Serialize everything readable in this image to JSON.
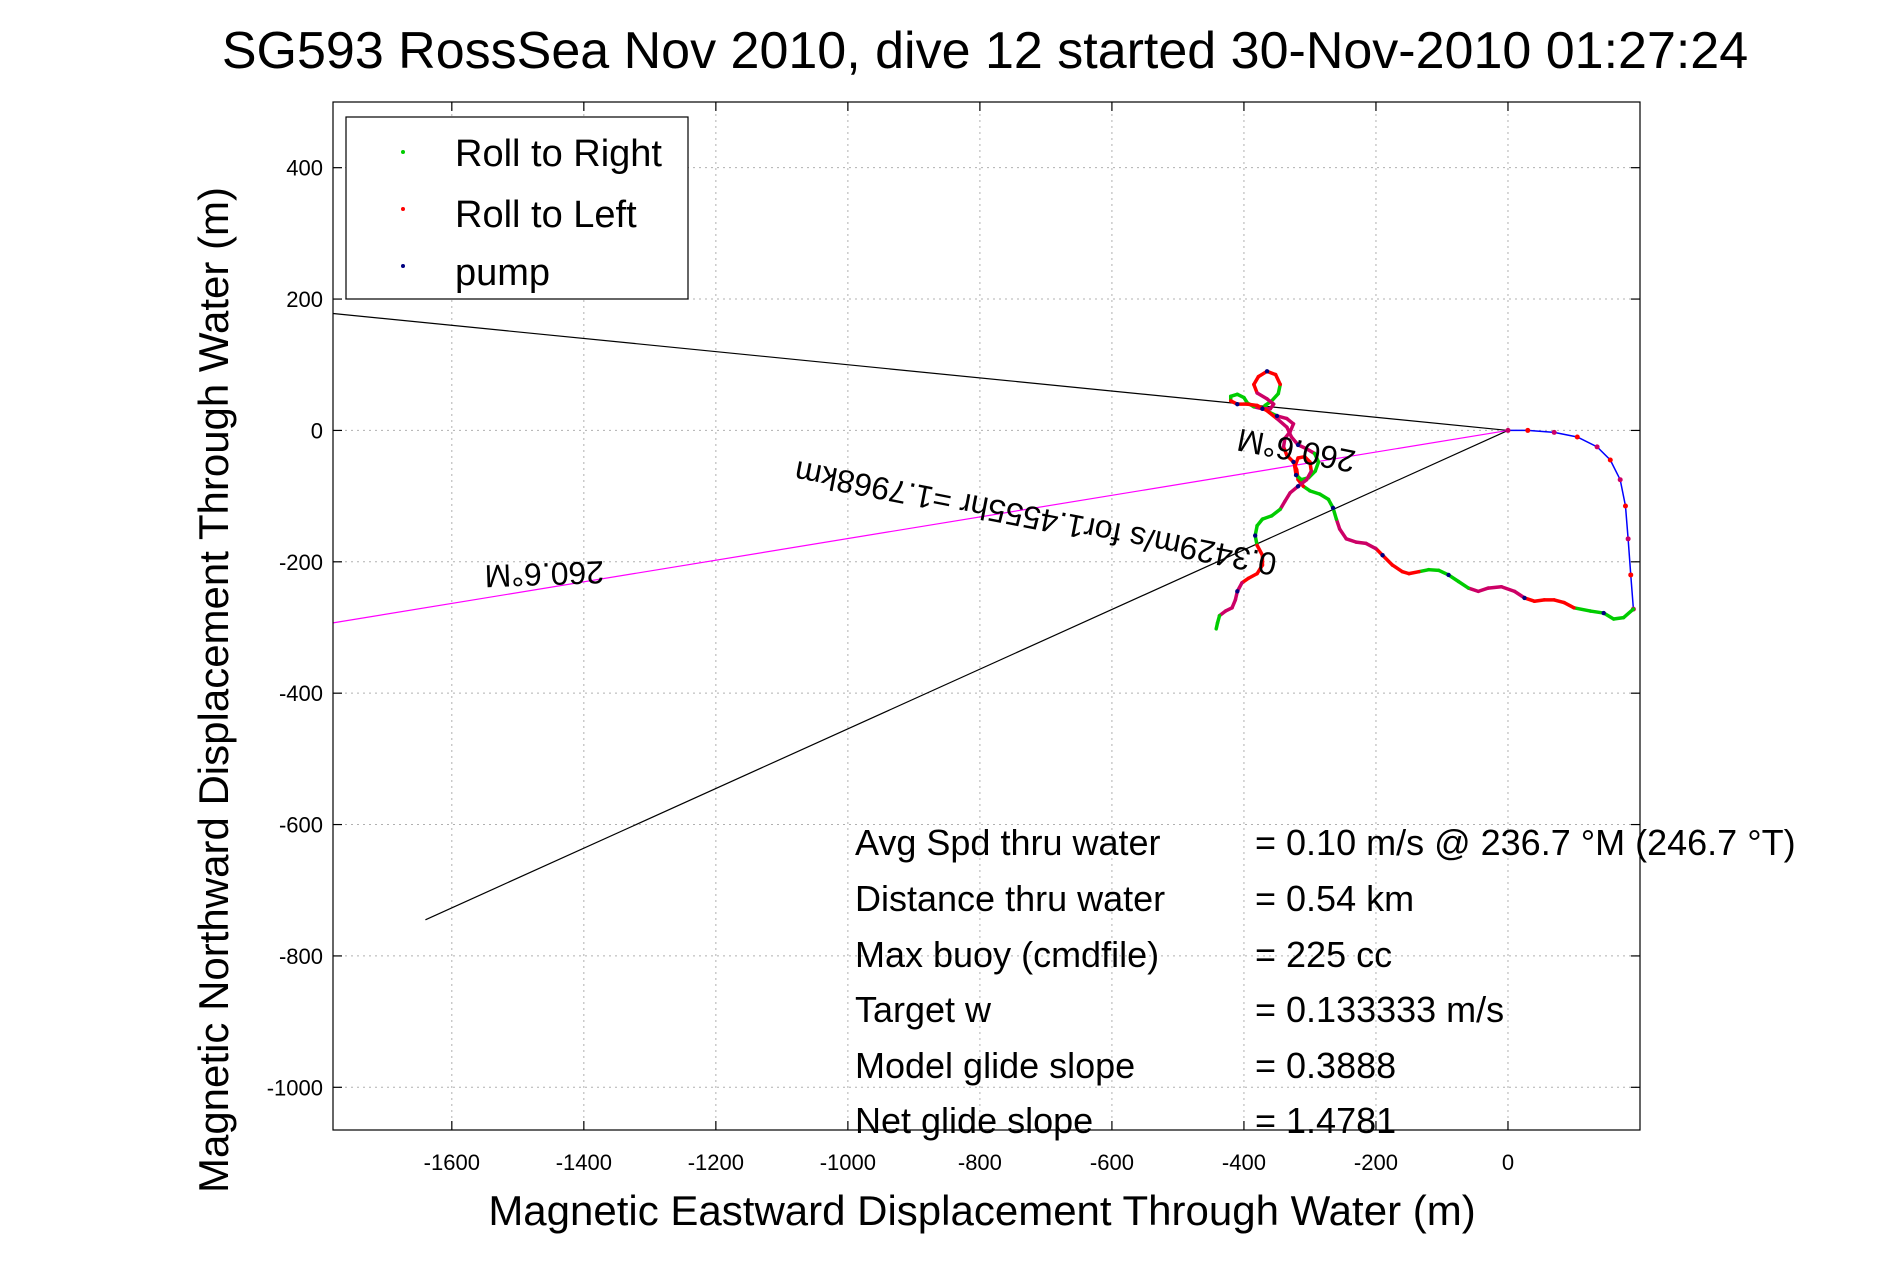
{
  "chart_data": {
    "type": "line",
    "title": "SG593 RossSea Nov 2010, dive 12 started 30-Nov-2010 01:27:24",
    "xlabel": "Magnetic Eastward Displacement Through Water (m)",
    "ylabel": "Magnetic Northward Displacement Through Water (m)",
    "xlim": [
      -1780,
      200
    ],
    "ylim": [
      -1065,
      500
    ],
    "xticks": [
      -1600,
      -1400,
      -1200,
      -1000,
      -800,
      -600,
      -400,
      -200,
      0
    ],
    "yticks": [
      400,
      200,
      0,
      -200,
      -400,
      -600,
      -800,
      -1000
    ],
    "grid": true,
    "legend": {
      "placement": "top-left",
      "entries": [
        {
          "label": "Roll to Right",
          "color": "#00cc00"
        },
        {
          "label": "Roll to Left",
          "color": "#ff0000"
        },
        {
          "label": "pump",
          "color": "#000080"
        }
      ]
    },
    "reference_lines": [
      {
        "color": "#000000",
        "points": [
          [
            -1780,
            178
          ],
          [
            0,
            0
          ]
        ]
      },
      {
        "color": "#000000",
        "points": [
          [
            -1640,
            -745
          ],
          [
            0,
            0
          ]
        ]
      },
      {
        "color": "#ff00ff",
        "points": [
          [
            -1780,
            -293
          ],
          [
            0,
            0
          ]
        ]
      }
    ],
    "dive_track": {
      "color": "#0000ff",
      "points": [
        [
          0,
          0
        ],
        [
          30,
          0
        ],
        [
          70,
          -3
        ],
        [
          105,
          -10
        ],
        [
          135,
          -25
        ],
        [
          155,
          -45
        ],
        [
          170,
          -75
        ],
        [
          178,
          -115
        ],
        [
          182,
          -165
        ],
        [
          186,
          -220
        ],
        [
          190,
          -272
        ]
      ]
    },
    "surface_track": {
      "colors": [
        "#00cc00",
        "#ff0000",
        "#000080"
      ],
      "points": [
        [
          190,
          -272
        ],
        [
          175,
          -285
        ],
        [
          160,
          -287
        ],
        [
          145,
          -278
        ],
        [
          125,
          -275
        ],
        [
          100,
          -270
        ],
        [
          85,
          -262
        ],
        [
          70,
          -258
        ],
        [
          55,
          -258
        ],
        [
          40,
          -260
        ],
        [
          25,
          -255
        ],
        [
          10,
          -245
        ],
        [
          -10,
          -238
        ],
        [
          -30,
          -240
        ],
        [
          -45,
          -245
        ],
        [
          -60,
          -240
        ],
        [
          -75,
          -230
        ],
        [
          -90,
          -220
        ],
        [
          -105,
          -213
        ],
        [
          -120,
          -212
        ],
        [
          -135,
          -215
        ],
        [
          -150,
          -218
        ],
        [
          -160,
          -215
        ],
        [
          -175,
          -205
        ],
        [
          -190,
          -190
        ],
        [
          -200,
          -180
        ],
        [
          -215,
          -172
        ],
        [
          -230,
          -170
        ],
        [
          -245,
          -165
        ],
        [
          -255,
          -150
        ],
        [
          -260,
          -135
        ],
        [
          -265,
          -118
        ],
        [
          -272,
          -105
        ],
        [
          -285,
          -97
        ],
        [
          -300,
          -92
        ],
        [
          -310,
          -85
        ],
        [
          -318,
          -75
        ],
        [
          -320,
          -60
        ],
        [
          -325,
          -48
        ],
        [
          -335,
          -38
        ],
        [
          -340,
          -25
        ],
        [
          -338,
          -12
        ],
        [
          -330,
          -2
        ],
        [
          -325,
          10
        ],
        [
          -335,
          18
        ],
        [
          -350,
          22
        ],
        [
          -362,
          28
        ],
        [
          -368,
          38
        ],
        [
          -358,
          45
        ],
        [
          -348,
          56
        ],
        [
          -345,
          70
        ],
        [
          -352,
          85
        ],
        [
          -365,
          90
        ],
        [
          -378,
          82
        ],
        [
          -385,
          70
        ],
        [
          -380,
          57
        ],
        [
          -365,
          48
        ],
        [
          -355,
          40
        ],
        [
          -360,
          33
        ],
        [
          -372,
          33
        ],
        [
          -385,
          36
        ],
        [
          -395,
          42
        ],
        [
          -400,
          50
        ],
        [
          -410,
          55
        ],
        [
          -420,
          52
        ],
        [
          -420,
          45
        ],
        [
          -410,
          40
        ],
        [
          -395,
          40
        ],
        [
          -380,
          38
        ],
        [
          -365,
          30
        ],
        [
          -350,
          18
        ],
        [
          -335,
          5
        ],
        [
          -328,
          -10
        ],
        [
          -318,
          -22
        ],
        [
          -305,
          -28
        ],
        [
          -293,
          -35
        ],
        [
          -287,
          -48
        ],
        [
          -292,
          -62
        ],
        [
          -302,
          -72
        ],
        [
          -313,
          -75
        ],
        [
          -321,
          -68
        ],
        [
          -323,
          -55
        ],
        [
          -318,
          -42
        ],
        [
          -308,
          -40
        ],
        [
          -300,
          -48
        ],
        [
          -298,
          -62
        ],
        [
          -305,
          -75
        ],
        [
          -318,
          -85
        ],
        [
          -330,
          -95
        ],
        [
          -338,
          -108
        ],
        [
          -345,
          -120
        ],
        [
          -358,
          -130
        ],
        [
          -372,
          -135
        ],
        [
          -380,
          -145
        ],
        [
          -383,
          -160
        ],
        [
          -380,
          -175
        ],
        [
          -372,
          -190
        ],
        [
          -372,
          -205
        ],
        [
          -380,
          -218
        ],
        [
          -393,
          -225
        ],
        [
          -403,
          -232
        ],
        [
          -410,
          -245
        ],
        [
          -413,
          -258
        ],
        [
          -418,
          -270
        ],
        [
          -428,
          -275
        ],
        [
          -437,
          -282
        ],
        [
          -440,
          -293
        ],
        [
          -442,
          -302
        ]
      ]
    },
    "annotations": [
      {
        "id": "heading-label-left",
        "text": "260.6°M",
        "x": -1460,
        "y": -215,
        "rotation": 178
      },
      {
        "id": "heading-label-mid",
        "text": "260.6°M",
        "x": -320,
        "y": -27,
        "rotation": 191
      },
      {
        "id": "speed-label",
        "text": "0.3429m/s for1.4555hr =1.7968km",
        "x": -715,
        "y": -130,
        "rotation": 191
      }
    ],
    "stats": [
      {
        "label": "Avg Spd thru water",
        "value": "=  0.10 m/s @ 236.7 °M (246.7 °T)"
      },
      {
        "label": "Distance thru water",
        "value": "=  0.54 km"
      },
      {
        "label": "Max buoy (cmdfile)",
        "value": "= 225 cc"
      },
      {
        "label": "Target w",
        "value": "= 0.133333 m/s"
      },
      {
        "label": "Model glide slope",
        "value": "= 0.3888"
      },
      {
        "label": "Net glide slope",
        "value": "= 1.4781"
      }
    ]
  }
}
